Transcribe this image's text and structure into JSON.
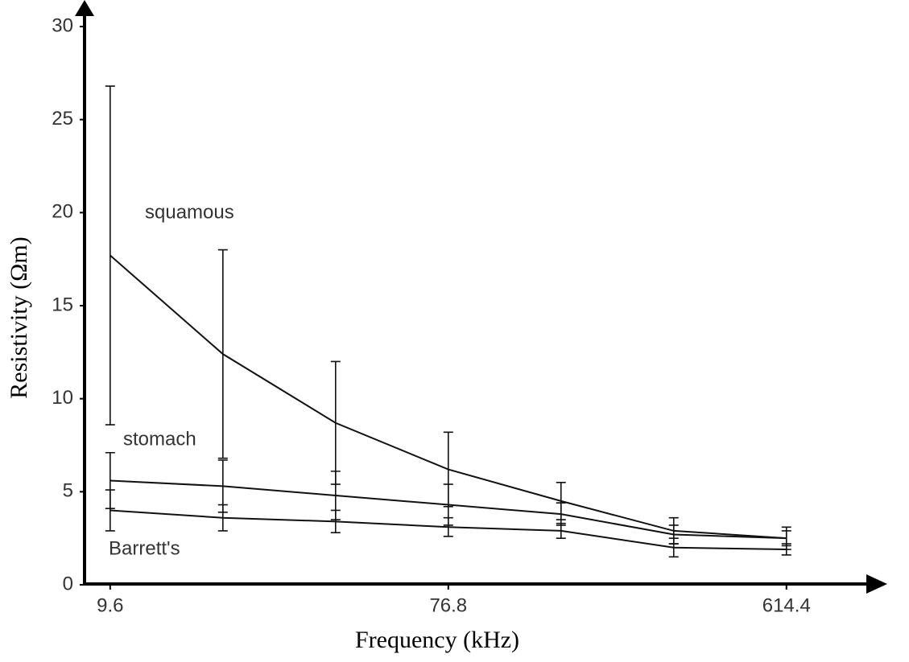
{
  "chart_data": {
    "type": "line",
    "x_label": "Frequency (kHz)",
    "y_label": "Resistivity (Ωm)",
    "x": [
      9.6,
      19.2,
      38.4,
      76.8,
      153.6,
      307.2,
      614.4
    ],
    "xscale": "log",
    "xlim": [
      8.2,
      1050
    ],
    "xticks": [
      9.6,
      76.8,
      614.4
    ],
    "ylim": [
      0,
      30
    ],
    "yticks": [
      0,
      5,
      10,
      15,
      20,
      25,
      30
    ],
    "grid": false,
    "series": [
      {
        "name": "squamous",
        "color": "#111111",
        "values": [
          17.7,
          12.4,
          8.7,
          6.2,
          4.5,
          2.9,
          2.5
        ],
        "errors": [
          9.1,
          5.6,
          3.3,
          2.0,
          1.0,
          0.7,
          0.6
        ]
      },
      {
        "name": "stomach",
        "color": "#111111",
        "values": [
          5.6,
          5.3,
          4.8,
          4.3,
          3.8,
          2.7,
          2.5
        ],
        "errors": [
          1.5,
          1.4,
          1.3,
          1.1,
          0.6,
          0.5,
          0.4
        ]
      },
      {
        "name": "Barrett's",
        "color": "#111111",
        "values": [
          4.0,
          3.6,
          3.4,
          3.1,
          2.9,
          2.0,
          1.9
        ],
        "errors": [
          1.1,
          0.7,
          0.6,
          0.5,
          0.4,
          0.5,
          0.3
        ]
      }
    ]
  }
}
